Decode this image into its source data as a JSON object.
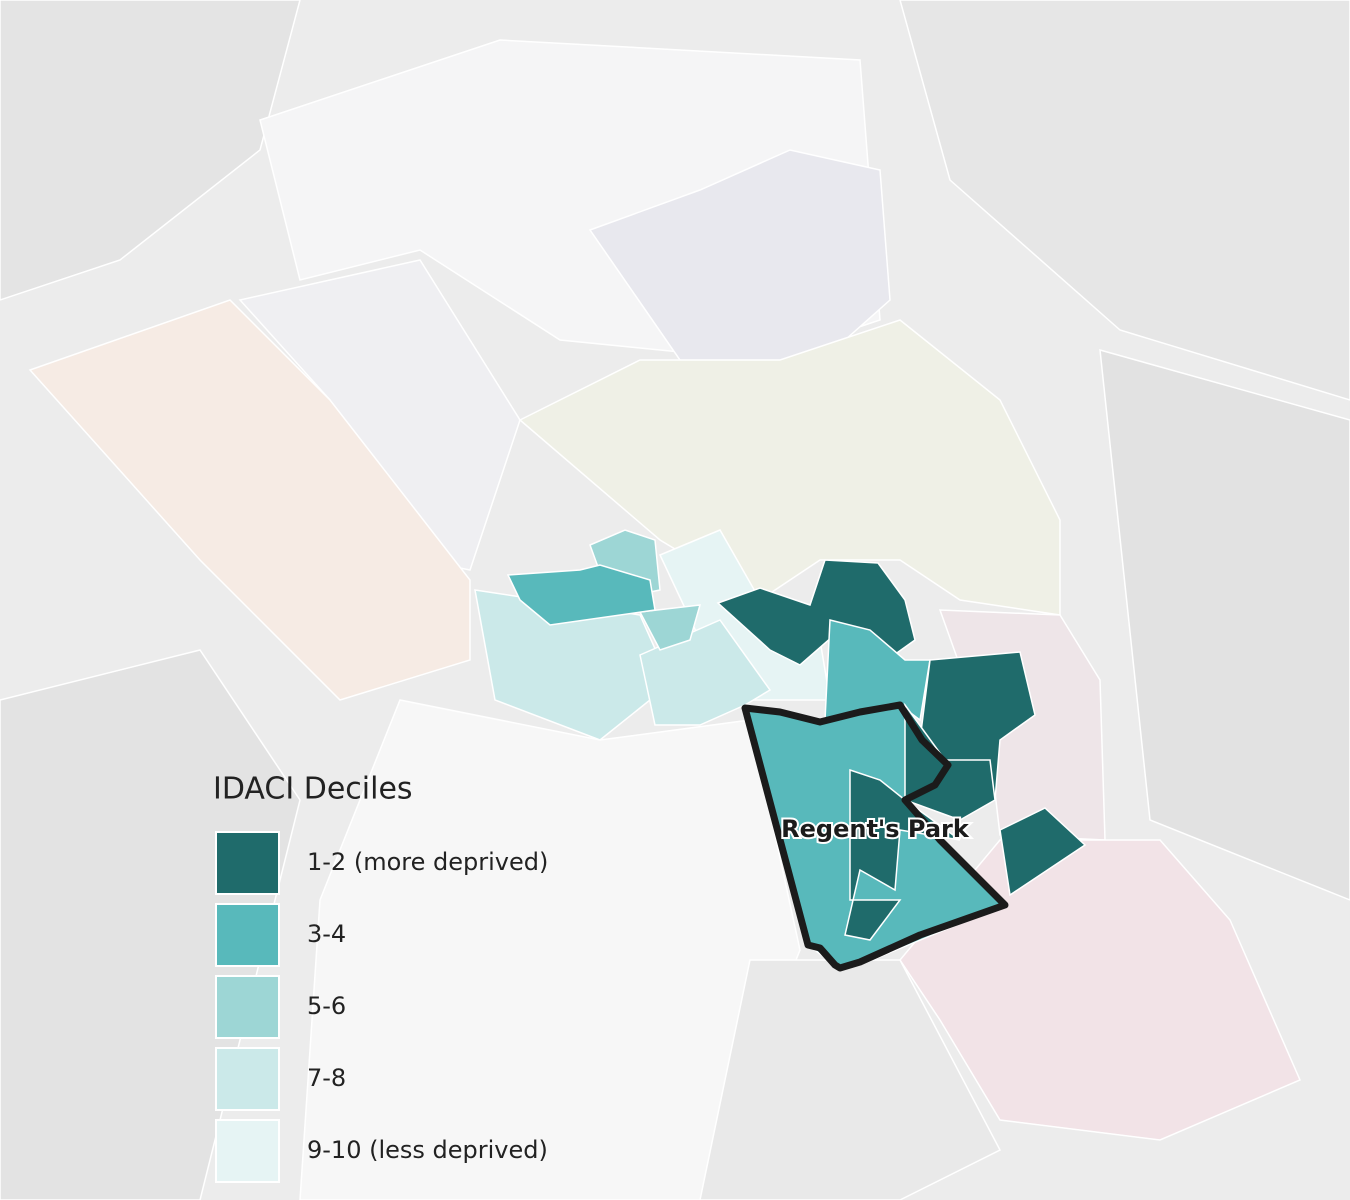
{
  "map": {
    "legend": {
      "title": "IDACI Deciles",
      "items": [
        {
          "label": "1-2 (more deprived)",
          "color": "#1f6b6b"
        },
        {
          "label": "3-4",
          "color": "#58b9bb"
        },
        {
          "label": "5-6",
          "color": "#9dd6d5"
        },
        {
          "label": "7-8",
          "color": "#cbe9e9"
        },
        {
          "label": "9-10 (less deprived)",
          "color": "#e6f4f4"
        }
      ]
    },
    "area_label": "Regent's Park"
  }
}
